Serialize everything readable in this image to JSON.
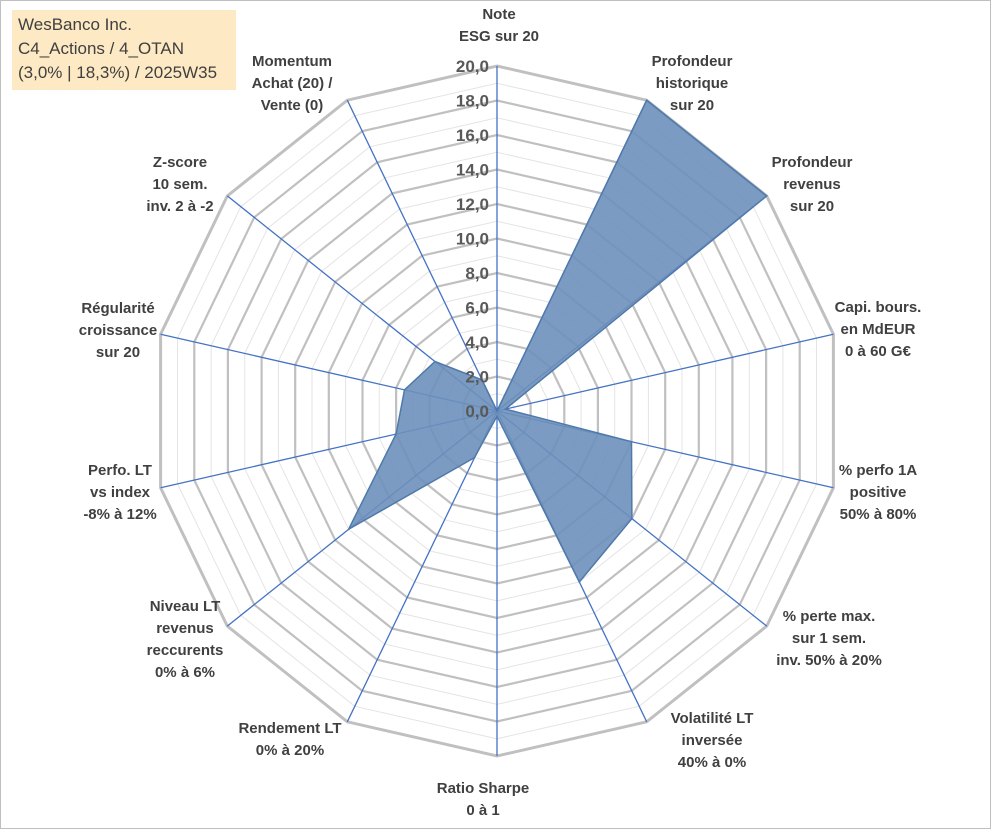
{
  "title_box": {
    "lines": [
      "WesBanco Inc.",
      "C4_Actions / 4_OTAN",
      "(3,0% | 18,3%) / 2025W35"
    ]
  },
  "chart_data": {
    "type": "radar",
    "title": "WesBanco Inc.",
    "range": [
      0,
      20
    ],
    "major_ticks": [
      "0,0",
      "2,0",
      "4,0",
      "6,0",
      "8,0",
      "10,0",
      "12,0",
      "14,0",
      "16,0",
      "18,0",
      "20,0"
    ],
    "minor_ring_step": 1,
    "axes": [
      {
        "label": "Note\nESG sur 20",
        "value": 0
      },
      {
        "label": "Profondeur\nhistorique\nsur 20",
        "value": 20
      },
      {
        "label": "Profondeur\nrevenus\nsur 20",
        "value": 20
      },
      {
        "label": "Capi. bours.\nen MdEUR\n0 à 60 G€",
        "value": 0.5
      },
      {
        "label": "% perfo 1A\npositive\n50% à 80%",
        "value": 8
      },
      {
        "label": "% perte max.\nsur 1 sem.\ninv. 50% à 20%",
        "value": 10
      },
      {
        "label": "Volatilité LT\ninversée\n40% à 0%",
        "value": 11
      },
      {
        "label": "Ratio Sharpe\n0 à 1",
        "value": 0.3
      },
      {
        "label": "Rendement LT\n0% à 20%",
        "value": 3
      },
      {
        "label": "Niveau LT\nrevenus\nreccurents\n0% à 6%",
        "value": 11
      },
      {
        "label": "Perfo. LT\nvs index\n-8% à 12%",
        "value": 6
      },
      {
        "label": "Régularité\ncroissance\nsur 20",
        "value": 5.5
      },
      {
        "label": "Z-score\n10 sem.\ninv. 2 à -2",
        "value": 4.6
      },
      {
        "label": "Momentum\nAchat (20) /\nVente (0)",
        "value": 2
      }
    ],
    "series": [
      {
        "name": "",
        "color": "#6d90bb",
        "stroke": "#4f79aa"
      }
    ],
    "grid_color": "#c0c0c0",
    "spoke_color": "#4472c4"
  }
}
